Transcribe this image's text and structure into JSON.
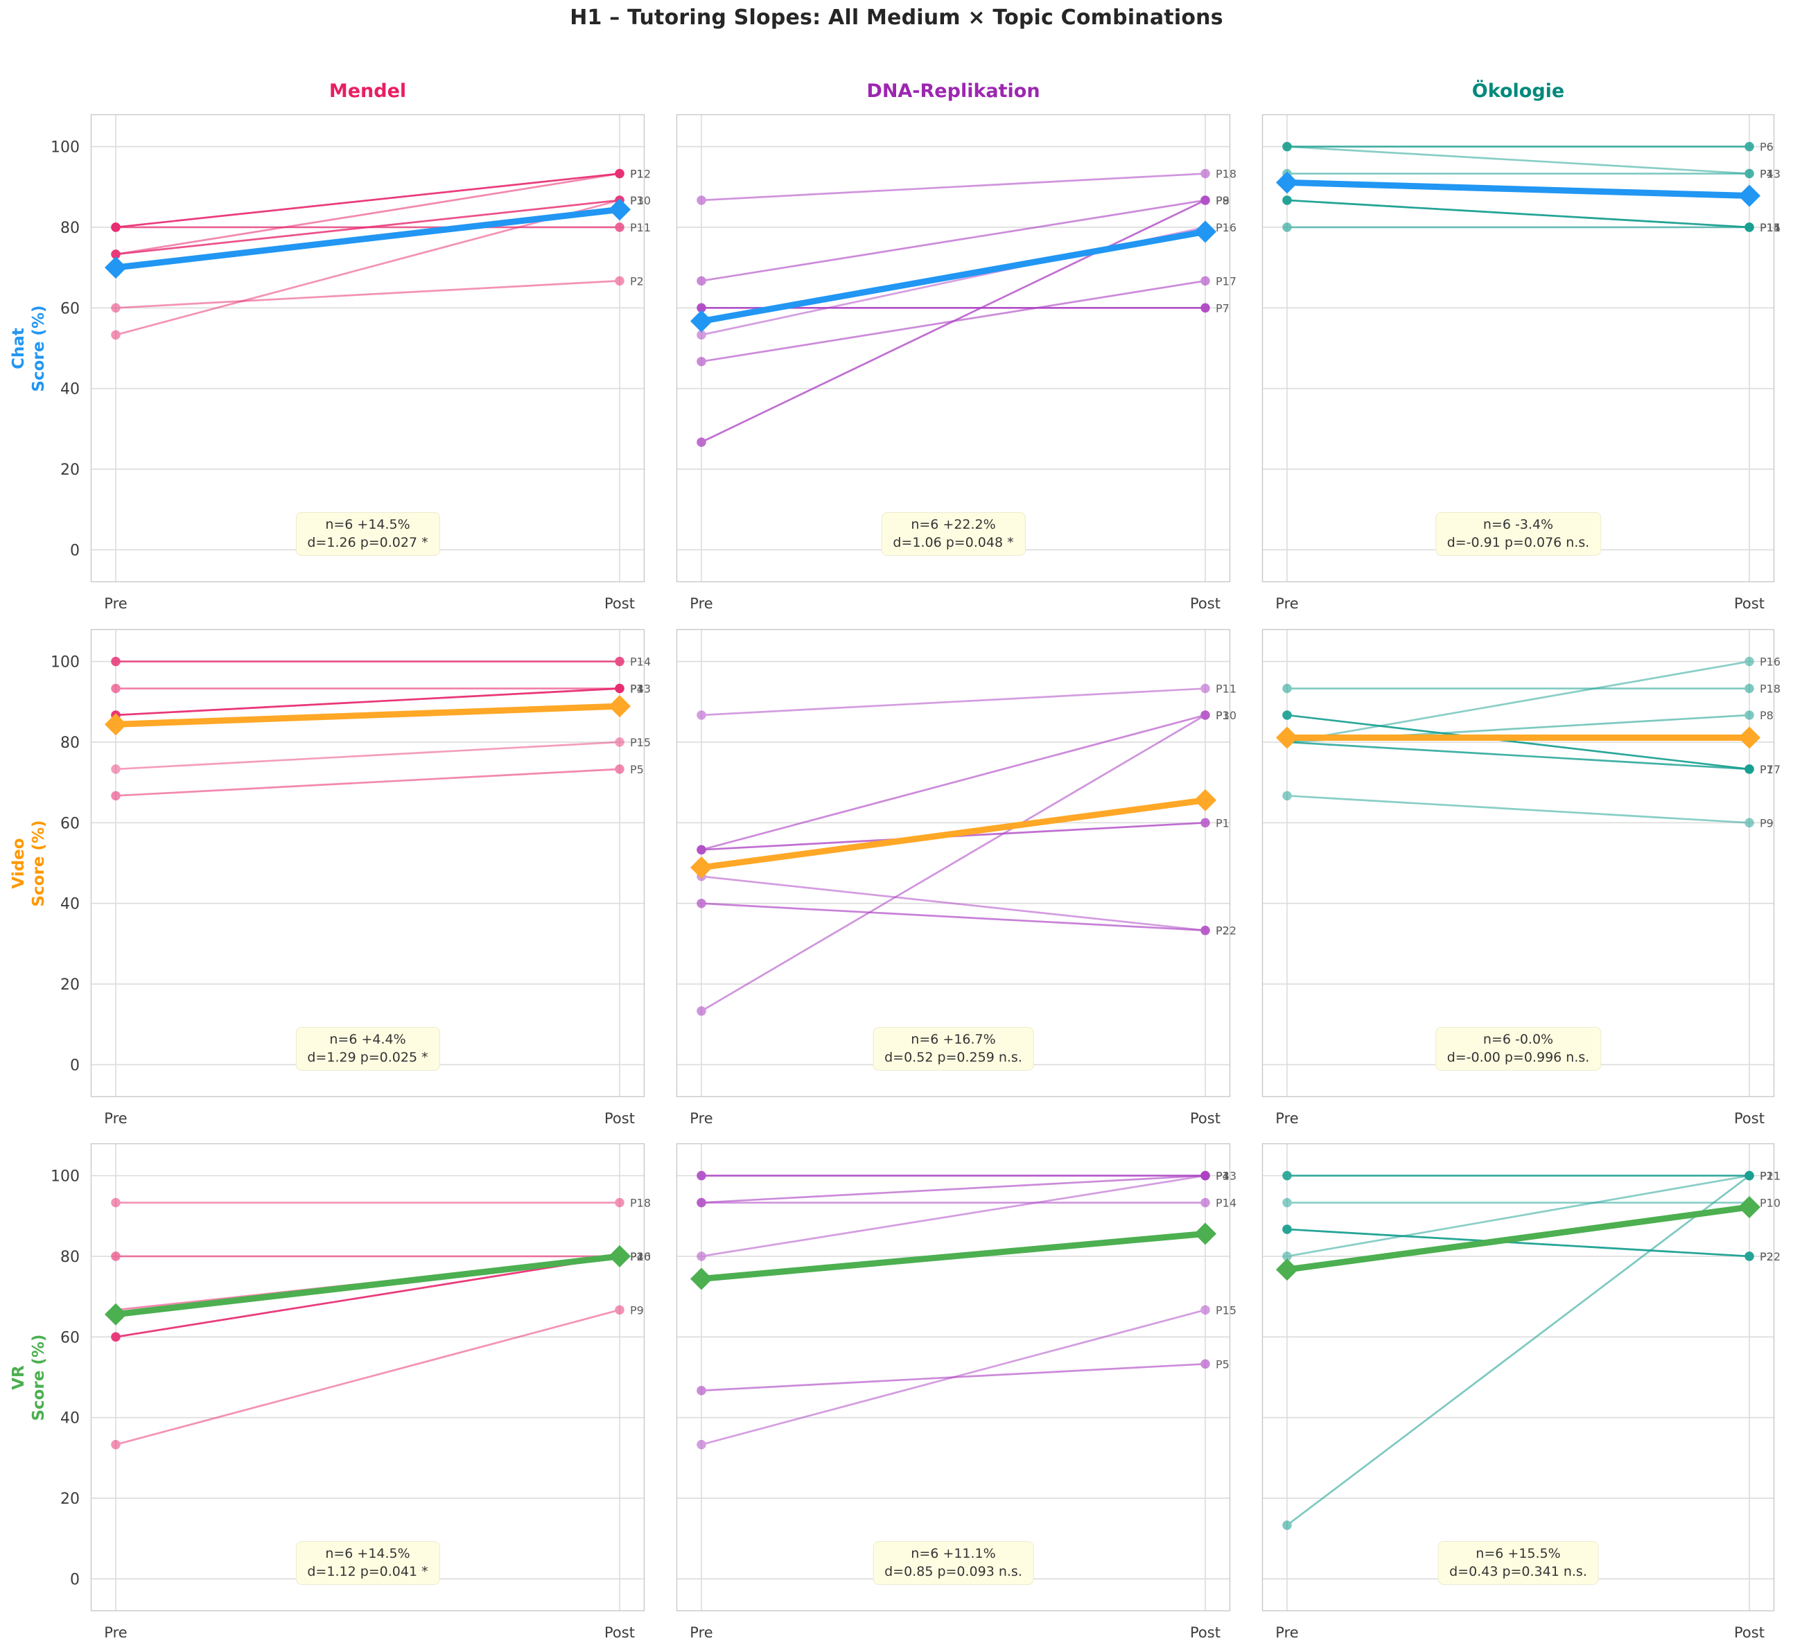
{
  "chart_data": {
    "type": "line",
    "subtype": "slope-grid-pre-post",
    "title": "H1 – Tutoring Slopes: All Medium × Topic Combinations",
    "grid": "on",
    "x_ticks": [
      "Pre",
      "Post"
    ],
    "y_ticks": [
      0,
      20,
      40,
      60,
      80,
      100
    ],
    "ylim": [
      -8,
      108
    ],
    "columns": [
      {
        "key": "mendel",
        "title": "Mendel",
        "title_color": "#E91E63",
        "line_color": "#E8286E"
      },
      {
        "key": "dna",
        "title": "DNA-Replikation",
        "title_color": "#9C27B0",
        "line_color": "#AB3EC2"
      },
      {
        "key": "oekologie",
        "title": "Ökologie",
        "title_color": "#00897B",
        "line_color": "#149E8F"
      }
    ],
    "rows": [
      {
        "key": "chat",
        "label_line1": "Chat",
        "label_line2": "Score (%)",
        "mean_color": "#2196F3",
        "label_color": "#2196F3"
      },
      {
        "key": "video",
        "label_line1": "Video",
        "label_line2": "Score (%)",
        "mean_color": "#FFA726",
        "label_color": "#FF9800"
      },
      {
        "key": "vr",
        "label_line1": "VR",
        "label_line2": "Score (%)",
        "mean_color": "#4CAF50",
        "label_color": "#4CAF50"
      }
    ],
    "cells": [
      {
        "medium": "Chat",
        "topic": "Mendel",
        "stats_line1": "n=6  +14.5%",
        "stats_line2": "d=1.26  p=0.027 *",
        "mean": {
          "pre": 70.0,
          "post": 84.4
        },
        "lines": [
          {
            "id": "P12",
            "pre": 80.0,
            "post": 93.3,
            "alpha": 0.9
          },
          {
            "id": "P1",
            "pre": 73.3,
            "post": 93.3,
            "alpha": 0.55
          },
          {
            "id": "P3",
            "pre": 73.3,
            "post": 86.7,
            "alpha": 0.8
          },
          {
            "id": "P10",
            "pre": 53.3,
            "post": 86.7,
            "alpha": 0.5
          },
          {
            "id": "P11",
            "pre": 80.0,
            "post": 80.0,
            "alpha": 0.7
          },
          {
            "id": "P2",
            "pre": 60.0,
            "post": 66.7,
            "alpha": 0.5
          }
        ]
      },
      {
        "medium": "Chat",
        "topic": "DNA-Replikation",
        "stats_line1": "n=6  +22.2%",
        "stats_line2": "d=1.06  p=0.048 *",
        "mean": {
          "pre": 56.7,
          "post": 78.9
        },
        "lines": [
          {
            "id": "P18",
            "pre": 86.7,
            "post": 93.3,
            "alpha": 0.55
          },
          {
            "id": "P8",
            "pre": 66.7,
            "post": 86.7,
            "alpha": 0.6
          },
          {
            "id": "P9",
            "pre": 26.7,
            "post": 86.7,
            "alpha": 0.75
          },
          {
            "id": "P16",
            "pre": 53.3,
            "post": 80.0,
            "alpha": 0.5
          },
          {
            "id": "P17",
            "pre": 46.7,
            "post": 66.7,
            "alpha": 0.6
          },
          {
            "id": "P7",
            "pre": 60.0,
            "post": 60.0,
            "alpha": 0.9
          }
        ]
      },
      {
        "medium": "Chat",
        "topic": "Ökologie",
        "stats_line1": "n=6  -3.4%",
        "stats_line2": "d=-0.91  p=0.076 n.s.",
        "mean": {
          "pre": 91.1,
          "post": 87.8
        },
        "lines": [
          {
            "id": "P6",
            "pre": 100.0,
            "post": 100.0,
            "alpha": 0.8
          },
          {
            "id": "P13",
            "pre": 100.0,
            "post": 93.3,
            "alpha": 0.5
          },
          {
            "id": "P4",
            "pre": 93.3,
            "post": 93.3,
            "alpha": 0.55
          },
          {
            "id": "P11",
            "pre": 86.7,
            "post": 80.0,
            "alpha": 0.85
          },
          {
            "id": "P14",
            "pre": 86.7,
            "post": 80.0,
            "alpha": 0.5
          },
          {
            "id": "P15",
            "pre": 80.0,
            "post": 80.0,
            "alpha": 0.6
          }
        ]
      },
      {
        "medium": "Video",
        "topic": "Mendel",
        "stats_line1": "n=6  +4.4%",
        "stats_line2": "d=1.29  p=0.025 *",
        "mean": {
          "pre": 84.4,
          "post": 88.9
        },
        "lines": [
          {
            "id": "P14",
            "pre": 100.0,
            "post": 100.0,
            "alpha": 0.8
          },
          {
            "id": "P13",
            "pre": 93.3,
            "post": 93.3,
            "alpha": 0.6
          },
          {
            "id": "P4",
            "pre": 86.7,
            "post": 93.3,
            "alpha": 0.85
          },
          {
            "id": "P3",
            "pre": 86.7,
            "post": 93.3,
            "alpha": 0.5
          },
          {
            "id": "P15",
            "pre": 73.3,
            "post": 80.0,
            "alpha": 0.45
          },
          {
            "id": "P5",
            "pre": 66.7,
            "post": 73.3,
            "alpha": 0.55
          }
        ]
      },
      {
        "medium": "Video",
        "topic": "DNA-Replikation",
        "stats_line1": "n=6  +16.7%",
        "stats_line2": "d=0.52  p=0.259 n.s.",
        "mean": {
          "pre": 48.9,
          "post": 65.6
        },
        "lines": [
          {
            "id": "P11",
            "pre": 86.7,
            "post": 93.3,
            "alpha": 0.5
          },
          {
            "id": "P10",
            "pre": 53.3,
            "post": 86.7,
            "alpha": 0.6
          },
          {
            "id": "P3",
            "pre": 13.3,
            "post": 86.7,
            "alpha": 0.55
          },
          {
            "id": "P1",
            "pre": 53.3,
            "post": 60.0,
            "alpha": 0.75
          },
          {
            "id": "P2",
            "pre": 46.7,
            "post": 33.3,
            "alpha": 0.5
          },
          {
            "id": "P22",
            "pre": 40.0,
            "post": 33.3,
            "alpha": 0.65
          }
        ]
      },
      {
        "medium": "Video",
        "topic": "Ökologie",
        "stats_line1": "n=6  -0.0%",
        "stats_line2": "d=-0.00  p=0.996 n.s.",
        "mean": {
          "pre": 81.1,
          "post": 81.1
        },
        "lines": [
          {
            "id": "P18",
            "pre": 93.3,
            "post": 93.3,
            "alpha": 0.55
          },
          {
            "id": "P17",
            "pre": 86.7,
            "post": 73.3,
            "alpha": 0.9
          },
          {
            "id": "P16",
            "pre": 80.0,
            "post": 100.0,
            "alpha": 0.5
          },
          {
            "id": "P8",
            "pre": 80.0,
            "post": 86.7,
            "alpha": 0.55
          },
          {
            "id": "P7",
            "pre": 80.0,
            "post": 73.3,
            "alpha": 0.8
          },
          {
            "id": "P9",
            "pre": 66.7,
            "post": 60.0,
            "alpha": 0.5
          }
        ]
      },
      {
        "medium": "VR",
        "topic": "Mendel",
        "stats_line1": "n=6  +14.5%",
        "stats_line2": "d=1.12  p=0.041 *",
        "mean": {
          "pre": 65.6,
          "post": 80.0
        },
        "lines": [
          {
            "id": "P18",
            "pre": 93.3,
            "post": 93.3,
            "alpha": 0.5
          },
          {
            "id": "P16",
            "pre": 80.0,
            "post": 80.0,
            "alpha": 0.6
          },
          {
            "id": "P2",
            "pre": 66.7,
            "post": 80.0,
            "alpha": 0.55
          },
          {
            "id": "P4",
            "pre": 60.0,
            "post": 80.0,
            "alpha": 0.8
          },
          {
            "id": "P10",
            "pre": 60.0,
            "post": 80.0,
            "alpha": 0.5
          },
          {
            "id": "P9",
            "pre": 33.3,
            "post": 66.7,
            "alpha": 0.5
          }
        ]
      },
      {
        "medium": "VR",
        "topic": "DNA-Replikation",
        "stats_line1": "n=6  +11.1%",
        "stats_line2": "d=0.85  p=0.093 n.s.",
        "mean": {
          "pre": 74.4,
          "post": 85.6
        },
        "lines": [
          {
            "id": "P13",
            "pre": 100.0,
            "post": 100.0,
            "alpha": 0.85
          },
          {
            "id": "P4",
            "pre": 93.3,
            "post": 100.0,
            "alpha": 0.6
          },
          {
            "id": "P3",
            "pre": 80.0,
            "post": 100.0,
            "alpha": 0.5
          },
          {
            "id": "P14",
            "pre": 93.3,
            "post": 93.3,
            "alpha": 0.55
          },
          {
            "id": "P15",
            "pre": 33.3,
            "post": 66.7,
            "alpha": 0.5
          },
          {
            "id": "P5",
            "pre": 46.7,
            "post": 53.3,
            "alpha": 0.6
          }
        ]
      },
      {
        "medium": "VR",
        "topic": "Ökologie",
        "stats_line1": "n=6  +15.5%",
        "stats_line2": "d=0.43  p=0.341 n.s.",
        "mean": {
          "pre": 76.7,
          "post": 92.2
        },
        "lines": [
          {
            "id": "P11",
            "pre": 100.0,
            "post": 100.0,
            "alpha": 0.85
          },
          {
            "id": "P10",
            "pre": 93.3,
            "post": 93.3,
            "alpha": 0.5
          },
          {
            "id": "P21",
            "pre": 13.3,
            "post": 100.0,
            "alpha": 0.55
          },
          {
            "id": "P1",
            "pre": 80.0,
            "post": 100.0,
            "alpha": 0.5
          },
          {
            "id": "P22",
            "pre": 86.7,
            "post": 80.0,
            "alpha": 0.8
          },
          {
            "id": "P2",
            "pre": 86.7,
            "post": 80.0,
            "alpha": 0.6
          }
        ]
      }
    ]
  }
}
